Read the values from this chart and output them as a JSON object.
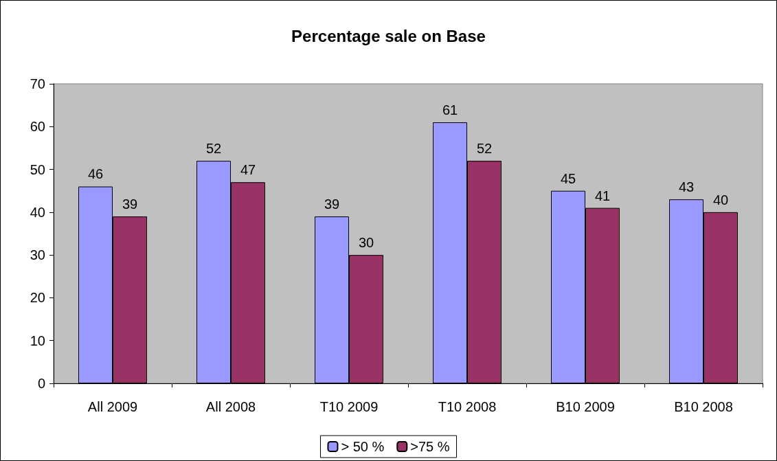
{
  "chart_data": {
    "type": "bar",
    "title": "Percentage sale on Base",
    "categories": [
      "All 2009",
      "All 2008",
      "T10 2009",
      "T10 2008",
      "B10 2009",
      "B10 2008"
    ],
    "series": [
      {
        "name": "> 50 %",
        "color": "#9999ff",
        "values": [
          46,
          52,
          39,
          61,
          45,
          43
        ]
      },
      {
        "name": ">75 %",
        "color": "#993366",
        "values": [
          39,
          47,
          30,
          52,
          41,
          40
        ]
      }
    ],
    "ylim": [
      0,
      70
    ],
    "yticks": [
      0,
      10,
      20,
      30,
      40,
      50,
      60,
      70
    ],
    "data_labels": true,
    "legend": "bottom",
    "grid": false
  }
}
